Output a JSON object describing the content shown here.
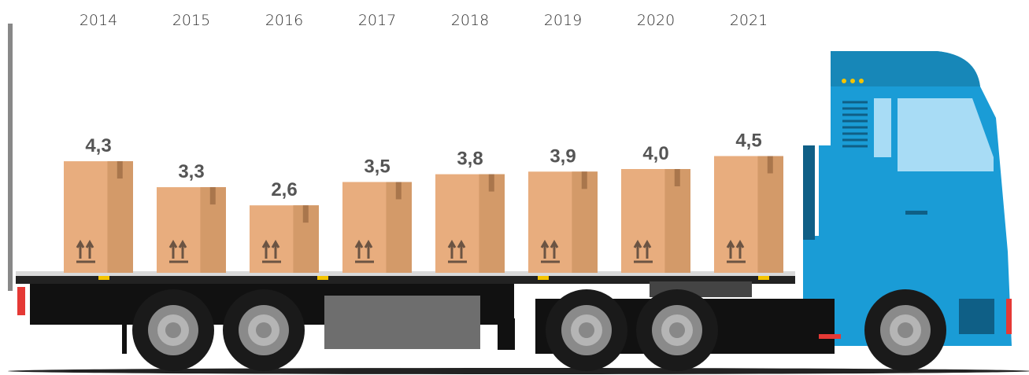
{
  "chart_data": {
    "type": "bar",
    "categories": [
      "2014",
      "2015",
      "2016",
      "2017",
      "2018",
      "2019",
      "2020",
      "2021"
    ],
    "values": [
      4.3,
      3.3,
      2.6,
      3.5,
      3.8,
      3.9,
      4.0,
      4.5
    ],
    "value_labels": [
      "4,3",
      "3,3",
      "2,6",
      "3,5",
      "3,8",
      "3,9",
      "4,0",
      "4,5"
    ],
    "color": "#e8ad7e"
  }
}
